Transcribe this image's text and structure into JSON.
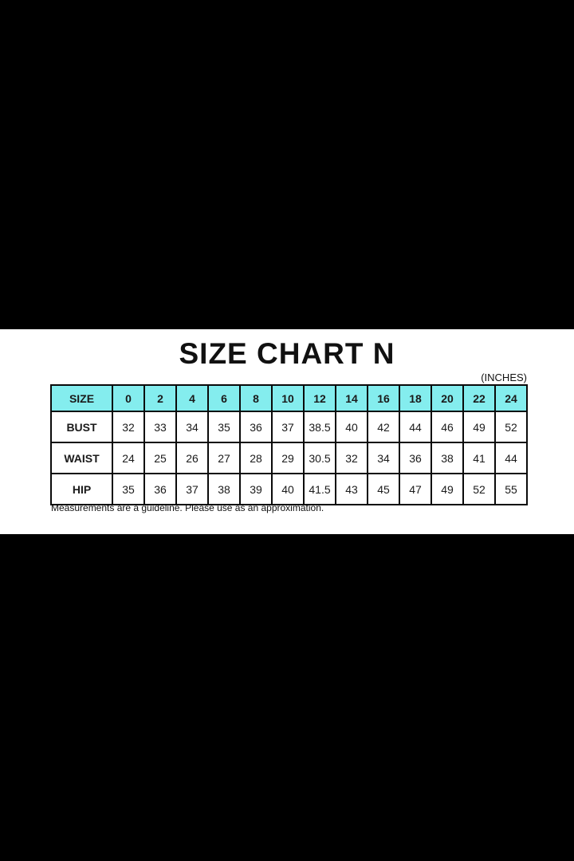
{
  "page": {
    "title": "SIZE CHART N",
    "units_label": "(INCHES)",
    "footnote": "Measurements are a guideline. Please use as an approximation."
  },
  "colors": {
    "frame_background": "#000000",
    "panel_background": "#ffffff",
    "header_row_background": "#84edee",
    "table_border": "#0a0a0a",
    "text": "#111111"
  },
  "chart_data": {
    "type": "table",
    "title": "SIZE CHART N",
    "units": "INCHES",
    "columns": [
      "SIZE",
      "0",
      "2",
      "4",
      "6",
      "8",
      "10",
      "12",
      "14",
      "16",
      "18",
      "20",
      "22",
      "24"
    ],
    "rows": [
      {
        "label": "BUST",
        "values": [
          "32",
          "33",
          "34",
          "35",
          "36",
          "37",
          "38.5",
          "40",
          "42",
          "44",
          "46",
          "49",
          "52"
        ]
      },
      {
        "label": "WAIST",
        "values": [
          "24",
          "25",
          "26",
          "27",
          "28",
          "29",
          "30.5",
          "32",
          "34",
          "36",
          "38",
          "41",
          "44"
        ]
      },
      {
        "label": "HIP",
        "values": [
          "35",
          "36",
          "37",
          "38",
          "39",
          "40",
          "41.5",
          "43",
          "45",
          "47",
          "49",
          "52",
          "55"
        ]
      }
    ]
  }
}
